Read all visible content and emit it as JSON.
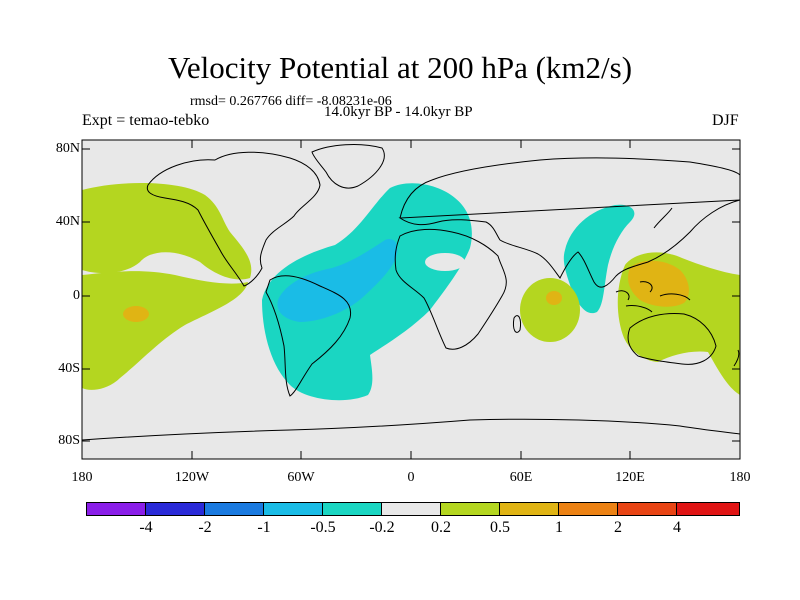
{
  "title": "Velocity Potential at 200 hPa (km2/s)",
  "stats": "rmsd= 0.267766 diff= -8.08231e-06",
  "period": "14.0kyr BP - 14.0kyr BP",
  "expt": "Expt = temao-tebko",
  "season": "DJF",
  "lat_labels": [
    "80N",
    "40N",
    "0",
    "40S",
    "80S"
  ],
  "lon_labels": [
    "180",
    "120W",
    "60W",
    "0",
    "60E",
    "120E",
    "180"
  ],
  "colorbar": {
    "colors": [
      "#8a1ee8",
      "#2a2ad8",
      "#1a7ae0",
      "#1abce6",
      "#1ad6c2",
      "#e8e8e8",
      "#b4d620",
      "#e0b414",
      "#ec8214",
      "#e84414",
      "#e01414"
    ],
    "labels": [
      "-4",
      "-2",
      "-1",
      "-0.5",
      "-0.2",
      "0.2",
      "0.5",
      "1",
      "2",
      "4"
    ]
  },
  "map": {
    "background": "#e8e8e8",
    "fill_negative": "#1ad6c2",
    "fill_negative_strong": "#1abce6",
    "fill_positive": "#b4d620",
    "fill_positive_strong": "#e0b414"
  }
}
